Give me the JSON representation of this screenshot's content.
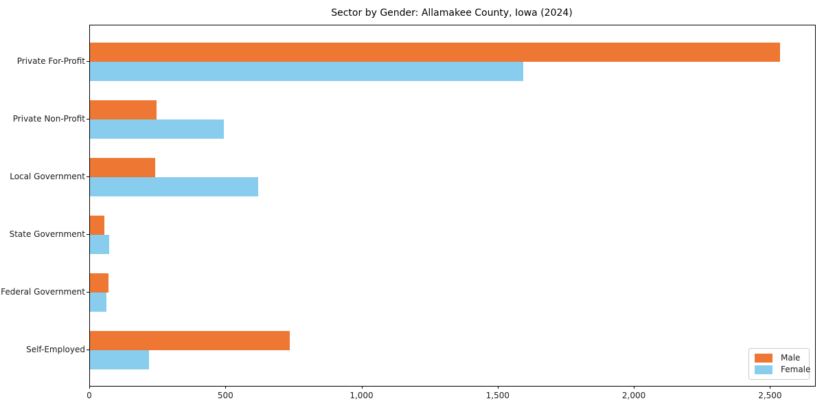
{
  "chart_data": {
    "type": "bar",
    "orientation": "horizontal",
    "title": "Sector by Gender: Allamakee County, Iowa (2024)",
    "categories": [
      "Private For-Profit",
      "Private Non-Profit",
      "Local Government",
      "State Government",
      "Federal Government",
      "Self-Employed"
    ],
    "series": [
      {
        "name": "Male",
        "color": "#ee7733",
        "values": [
          2535,
          245,
          240,
          53,
          68,
          734
        ]
      },
      {
        "name": "Female",
        "color": "#88ccee",
        "values": [
          1590,
          492,
          618,
          70,
          61,
          217
        ]
      }
    ],
    "xlabel": "",
    "ylabel": "",
    "xlim": [
      0,
      2663
    ],
    "x_ticks": [
      0,
      500,
      1000,
      1500,
      2000,
      2500
    ],
    "x_tick_labels": [
      "0",
      "500",
      "1,000",
      "1,500",
      "2,000",
      "2,500"
    ],
    "grid": false,
    "legend_position": "lower right",
    "axis_color": "#000000",
    "background_color": "#ffffff"
  }
}
